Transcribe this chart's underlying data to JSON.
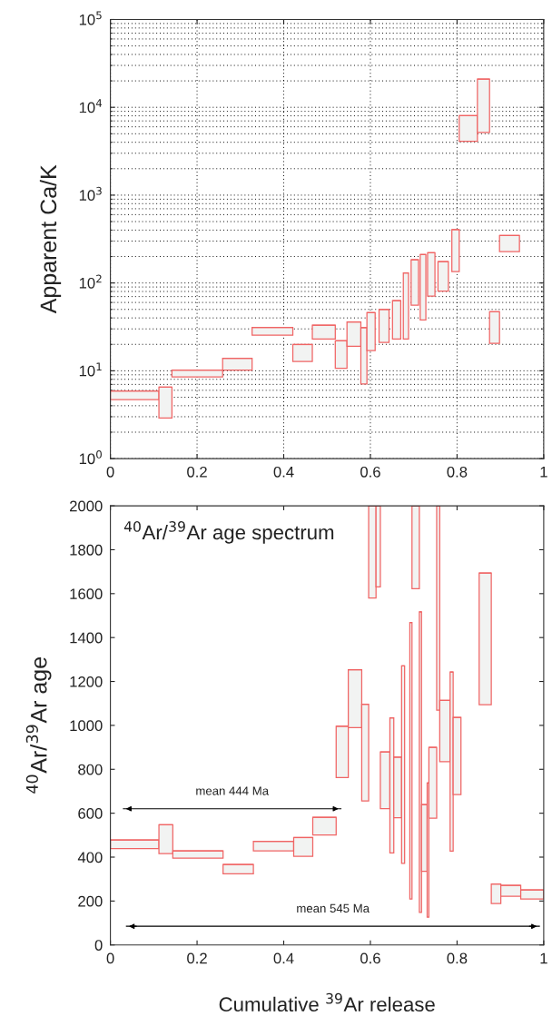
{
  "chart_data": [
    {
      "type": "bar",
      "ylabel": "Apparent Ca/K",
      "log": "y",
      "grid": true,
      "xlim": [
        0,
        1
      ],
      "xticks": [
        0,
        0.2,
        0.4,
        0.6,
        0.8,
        1
      ],
      "ylim": [
        1,
        100000
      ],
      "yticks": [
        {
          "value": 1,
          "label": "10$^{0}$"
        },
        {
          "value": 10,
          "label": "10$^{1}$"
        },
        {
          "value": 100,
          "label": "10$^{2}$"
        },
        {
          "value": 1000,
          "label": "10$^{3}$"
        },
        {
          "value": 10000,
          "label": "10$^{4}$"
        },
        {
          "value": 100000,
          "label": "10$^{5}$"
        }
      ],
      "series": [
        {
          "color": "#f06464",
          "x": [
            0.056,
            0.127,
            0.2005,
            0.293,
            0.374,
            0.4435,
            0.4925,
            0.5325,
            0.562,
            0.585,
            0.6015,
            0.6315,
            0.6605,
            0.682,
            0.7025,
            0.7215,
            0.7405,
            0.768,
            0.7965,
            0.826,
            0.861,
            0.8865,
            0.921
          ],
          "xerrors": [
            0.056,
            0.015,
            0.0585,
            0.034,
            0.047,
            0.0225,
            0.0265,
            0.0135,
            0.016,
            0.007,
            0.0095,
            0.0115,
            0.0095,
            0.006,
            0.0085,
            0.0065,
            0.0085,
            0.012,
            0.0085,
            0.021,
            0.014,
            0.0115,
            0.023
          ],
          "base": [
            4.7,
            2.9,
            8.5,
            10.2,
            25.5,
            12.8,
            23,
            10.7,
            19,
            7.1,
            17,
            21,
            23,
            23,
            56,
            38,
            71,
            81,
            135,
            4110,
            5180,
            20.6,
            227
          ],
          "values": [
            1.2,
            3.6,
            1.7,
            3.7,
            5.7,
            7.1,
            10,
            11.3,
            17,
            23.9,
            29,
            29,
            40,
            107,
            128,
            173,
            150,
            94,
            270,
            3940,
            15820,
            26.4,
            120
          ]
        }
      ]
    },
    {
      "type": "bar",
      "title": "$^{40}$Ar/$^{39}$Ar age spectrum",
      "ylabel": "$^{40}$Ar/$^{39}$Ar age",
      "xlabel": "Cumulative $^{39}$Ar release",
      "xlim": [
        0,
        1
      ],
      "xticks": [
        0,
        0.2,
        0.4,
        0.6,
        0.8,
        1
      ],
      "ylim": [
        0,
        2000
      ],
      "yticks": [
        0,
        200,
        400,
        600,
        800,
        1000,
        1200,
        1400,
        1600,
        1800,
        2000
      ],
      "series": [
        {
          "color": "#f06464",
          "x": [
            0.056,
            0.128,
            0.202,
            0.295,
            0.3765,
            0.445,
            0.494,
            0.535,
            0.5645,
            0.588,
            0.6045,
            0.618,
            0.634,
            0.6495,
            0.663,
            0.6755,
            0.6935,
            0.7045,
            0.7155,
            0.7245,
            0.733,
            0.744,
            0.7565,
            0.772,
            0.7875,
            0.8,
            0.865,
            0.89,
            0.924,
            0.9735
          ],
          "xerrors": [
            0.056,
            0.016,
            0.058,
            0.035,
            0.0465,
            0.022,
            0.027,
            0.014,
            0.0155,
            0.008,
            0.0085,
            0.005,
            0.011,
            0.0045,
            0.009,
            0.0035,
            0.0025,
            0.0085,
            0.0025,
            0.0065,
            0.002,
            0.009,
            0.0035,
            0.012,
            0.0035,
            0.009,
            0.014,
            0.011,
            0.023,
            0.0265
          ],
          "base": [
            439,
            416,
            395,
            324,
            428,
            404,
            501,
            762,
            990,
            656,
            1580,
            1631,
            621,
            419,
            579,
            372,
            209,
            1623,
            148,
            335,
            127,
            577,
            1069,
            835,
            427,
            685,
            1094,
            189,
            222,
            209
          ],
          "values": [
            39,
            131,
            33,
            42,
            44,
            85,
            80,
            234,
            263,
            440,
            420,
            369,
            258,
            615,
            276,
            899,
            1259,
            377,
            1369,
            304,
            611,
            323,
            931,
            279,
            816,
            351,
            600,
            89,
            49,
            42
          ]
        },
        {
          "type": "line",
          "name": "mean 444 Ma",
          "color": "#000000",
          "x": [
            0.03,
            0.532
          ],
          "values": [
            620,
            620
          ]
        },
        {
          "type": "line",
          "name": "mean 545 Ma",
          "color": "#000000",
          "x": [
            0.037,
            0.99
          ],
          "values": [
            85,
            85
          ]
        }
      ]
    }
  ]
}
